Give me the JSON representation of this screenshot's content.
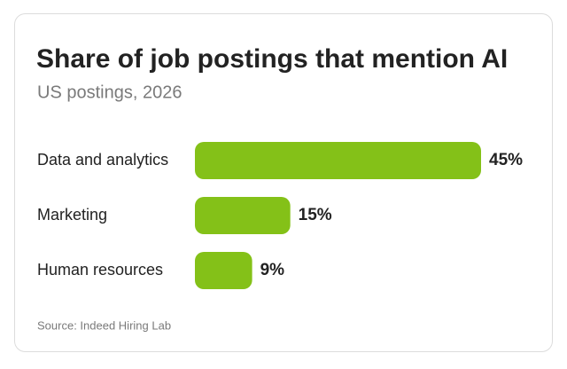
{
  "chart_data": {
    "type": "bar",
    "orientation": "horizontal",
    "title": "Share of job postings that mention AI",
    "subtitle": "US postings, 2026",
    "categories": [
      "Data and analytics",
      "Marketing",
      "Human resources"
    ],
    "values": [
      45,
      15,
      9
    ],
    "value_labels": [
      "45%",
      "15%",
      "9%"
    ],
    "color": "#84c118",
    "source": "Source: Indeed Hiring Lab"
  }
}
